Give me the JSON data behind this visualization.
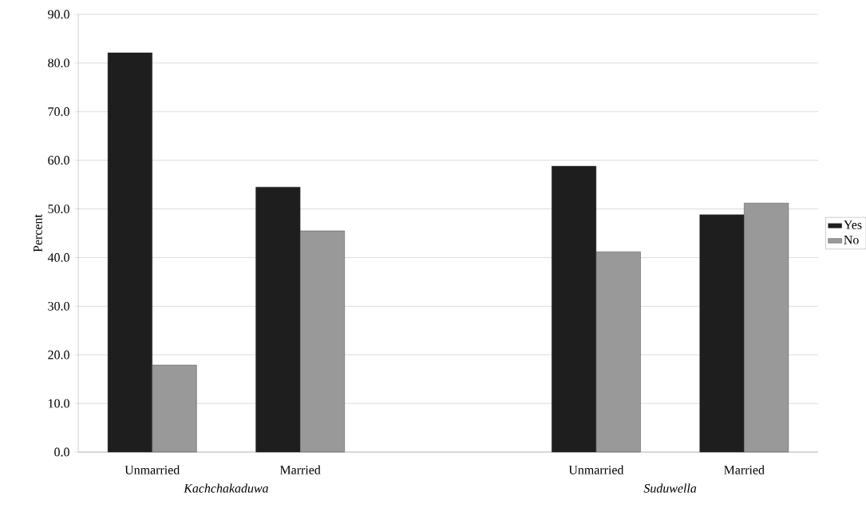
{
  "chart_data": {
    "type": "bar",
    "ylabel": "Percent",
    "categories": [
      "Unmarried",
      "Married",
      null,
      "Unmarried",
      "Married"
    ],
    "series": [
      {
        "name": "Yes",
        "color": "#1e1e1e",
        "values": [
          82.1,
          54.5,
          null,
          58.8,
          48.8
        ]
      },
      {
        "name": "No",
        "color": "#999999",
        "values": [
          17.9,
          45.5,
          null,
          41.2,
          51.2
        ]
      }
    ],
    "ylim": [
      0,
      90
    ],
    "yticks": [
      {
        "value": 0,
        "label": "0.0"
      },
      {
        "value": 10,
        "label": "10.0"
      },
      {
        "value": 20,
        "label": "20.0"
      },
      {
        "value": 30,
        "label": "30.0"
      },
      {
        "value": 40,
        "label": "40.0"
      },
      {
        "value": 50,
        "label": "50.0"
      },
      {
        "value": 60,
        "label": "60.0"
      },
      {
        "value": 70,
        "label": "70.0"
      },
      {
        "value": 80,
        "label": "80.0"
      },
      {
        "value": 90,
        "label": "90.0"
      }
    ],
    "grid": "y",
    "legend": "right",
    "annotations": [
      "Kachchakaduwa",
      "Suduwella"
    ]
  }
}
